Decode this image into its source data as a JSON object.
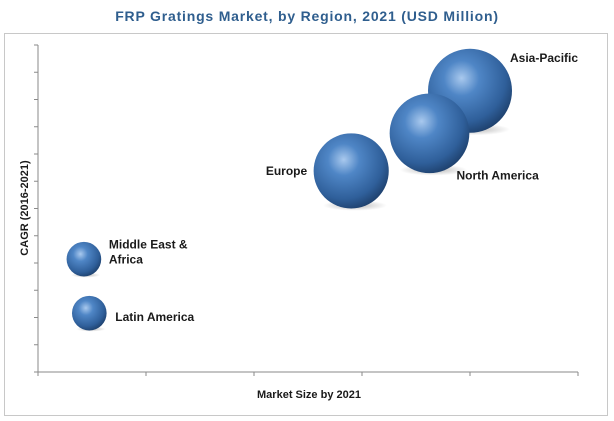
{
  "chart_data": {
    "type": "scatter",
    "subtype": "bubble",
    "title": "FRP Gratings Market, by Region, 2021 (USD Million)",
    "xlabel": "Market Size by 2021",
    "ylabel": "CAGR (2016-2021)",
    "xlim": [
      0,
      10
    ],
    "ylim": [
      0,
      10
    ],
    "grid": false,
    "tick_labels": false,
    "bubble_color": "#3f76b5",
    "points": [
      {
        "label": "Asia-Pacific",
        "label_lines": [
          "Asia-Pacific"
        ],
        "x": 8.0,
        "y": 8.6,
        "size": 10
      },
      {
        "label": "North America",
        "label_lines": [
          "North America"
        ],
        "x": 7.25,
        "y": 7.3,
        "size": 9
      },
      {
        "label": "Europe",
        "label_lines": [
          "Europe"
        ],
        "x": 5.8,
        "y": 6.15,
        "size": 8
      },
      {
        "label": "Middle East & Africa",
        "label_lines": [
          "Middle East &",
          "Africa"
        ],
        "x": 0.85,
        "y": 3.45,
        "size": 1.7
      },
      {
        "label": "Latin America",
        "label_lines": [
          "Latin America"
        ],
        "x": 0.95,
        "y": 1.8,
        "size": 1.7
      }
    ]
  }
}
